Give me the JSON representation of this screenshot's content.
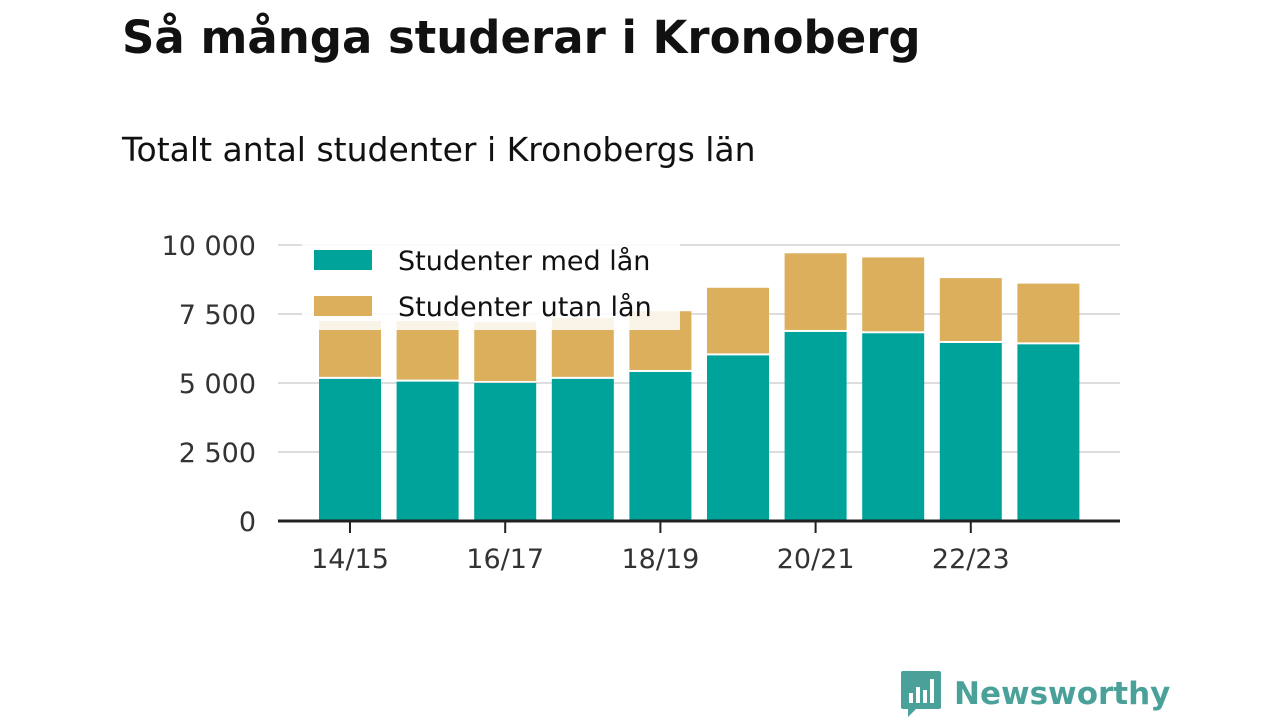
{
  "title": "Så många studerar i Kronoberg",
  "subtitle": "Totalt antal studenter i Kronobergs län",
  "brand": {
    "name": "Newsworthy",
    "icon": "newsworthy-logo-icon",
    "color": "#4aa19a"
  },
  "chart_data": {
    "type": "bar",
    "stacked": true,
    "title": "",
    "xlabel": "",
    "ylabel": "",
    "ylim": [
      0,
      10000
    ],
    "y_ticks": [
      {
        "value": 0,
        "label": "0"
      },
      {
        "value": 2500,
        "label": "2 500"
      },
      {
        "value": 5000,
        "label": "5 000"
      },
      {
        "value": 7500,
        "label": "7 500"
      },
      {
        "value": 10000,
        "label": "10 000"
      }
    ],
    "categories": [
      "14/15",
      "15/16",
      "16/17",
      "17/18",
      "18/19",
      "19/20",
      "20/21",
      "21/22",
      "22/23",
      "23/24"
    ],
    "x_tick_labels": [
      {
        "category": "14/15",
        "label": "14/15"
      },
      {
        "category": "16/17",
        "label": "16/17"
      },
      {
        "category": "18/19",
        "label": "18/19"
      },
      {
        "category": "20/21",
        "label": "20/21"
      },
      {
        "category": "22/23",
        "label": "22/23"
      }
    ],
    "series": [
      {
        "name": "Studenter med lån",
        "color": "#00a39a",
        "values": [
          5150,
          5050,
          5000,
          5150,
          5400,
          6000,
          6850,
          6800,
          6450,
          6400
        ]
      },
      {
        "name": "Studenter utan lån",
        "color": "#dcaf5c",
        "values": [
          2100,
          2200,
          2200,
          2200,
          2200,
          2450,
          2850,
          2750,
          2350,
          2200
        ]
      }
    ],
    "grid": true,
    "legend": {
      "position": "top-left"
    },
    "colors": {
      "grid": "#dddddd",
      "axis": "#222222",
      "legend_bg": "#ffffff"
    }
  }
}
